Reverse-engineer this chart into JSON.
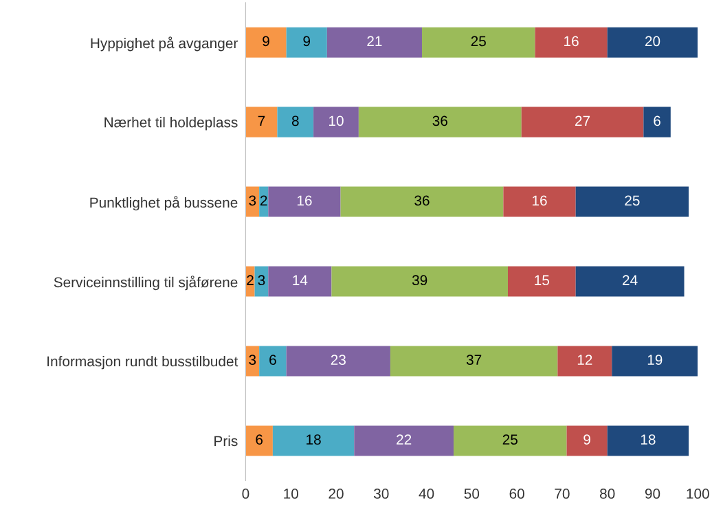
{
  "chart_data": {
    "type": "bar",
    "orientation": "horizontal",
    "stacked": true,
    "data_labels": true,
    "grid": false,
    "legend": false,
    "categories": [
      "Hyppighet på avganger",
      "Nærhet til holdeplass",
      "Punktlighet på bussene",
      "Serviceinnstilling til sjåførene",
      "Informasjon rundt busstilbudet",
      "Pris"
    ],
    "series": [
      {
        "color": "#f79646",
        "values": [
          9,
          7,
          3,
          2,
          3,
          6
        ]
      },
      {
        "color": "#4bacc6",
        "values": [
          9,
          8,
          2,
          3,
          6,
          18
        ]
      },
      {
        "color": "#8064a2",
        "values": [
          21,
          10,
          16,
          14,
          23,
          22
        ]
      },
      {
        "color": "#9bbb59",
        "values": [
          25,
          36,
          36,
          39,
          37,
          25
        ]
      },
      {
        "color": "#c0504d",
        "values": [
          16,
          27,
          16,
          15,
          12,
          9
        ]
      },
      {
        "color": "#1f497d",
        "values": [
          20,
          6,
          25,
          24,
          19,
          18
        ]
      }
    ],
    "xlim": [
      0,
      100
    ],
    "xticks": [
      0,
      10,
      20,
      30,
      40,
      50,
      60,
      70,
      80,
      90,
      100
    ]
  }
}
